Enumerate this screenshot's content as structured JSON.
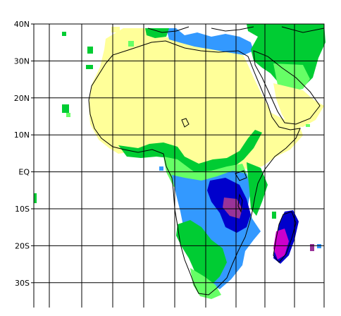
{
  "map": {
    "lat_labels": [
      {
        "text": "40N",
        "lat": 40
      },
      {
        "text": "30N",
        "lat": 30
      },
      {
        "text": "20N",
        "lat": 20
      },
      {
        "text": "10N",
        "lat": 10
      },
      {
        "text": "EQ",
        "lat": 0
      },
      {
        "text": "10S",
        "lat": -10
      },
      {
        "text": "20S",
        "lat": -20
      },
      {
        "text": "30S",
        "lat": -30
      }
    ],
    "colors": {
      "yellow": "#ffff99",
      "light_green": "#66ff66",
      "green": "#00cc33",
      "dark_green": "#009933",
      "blue": "#3399ff",
      "dark_blue": "#0000cc",
      "purple": "#993399",
      "magenta": "#cc00cc",
      "coast": "#000000",
      "grid": "#000000"
    }
  }
}
